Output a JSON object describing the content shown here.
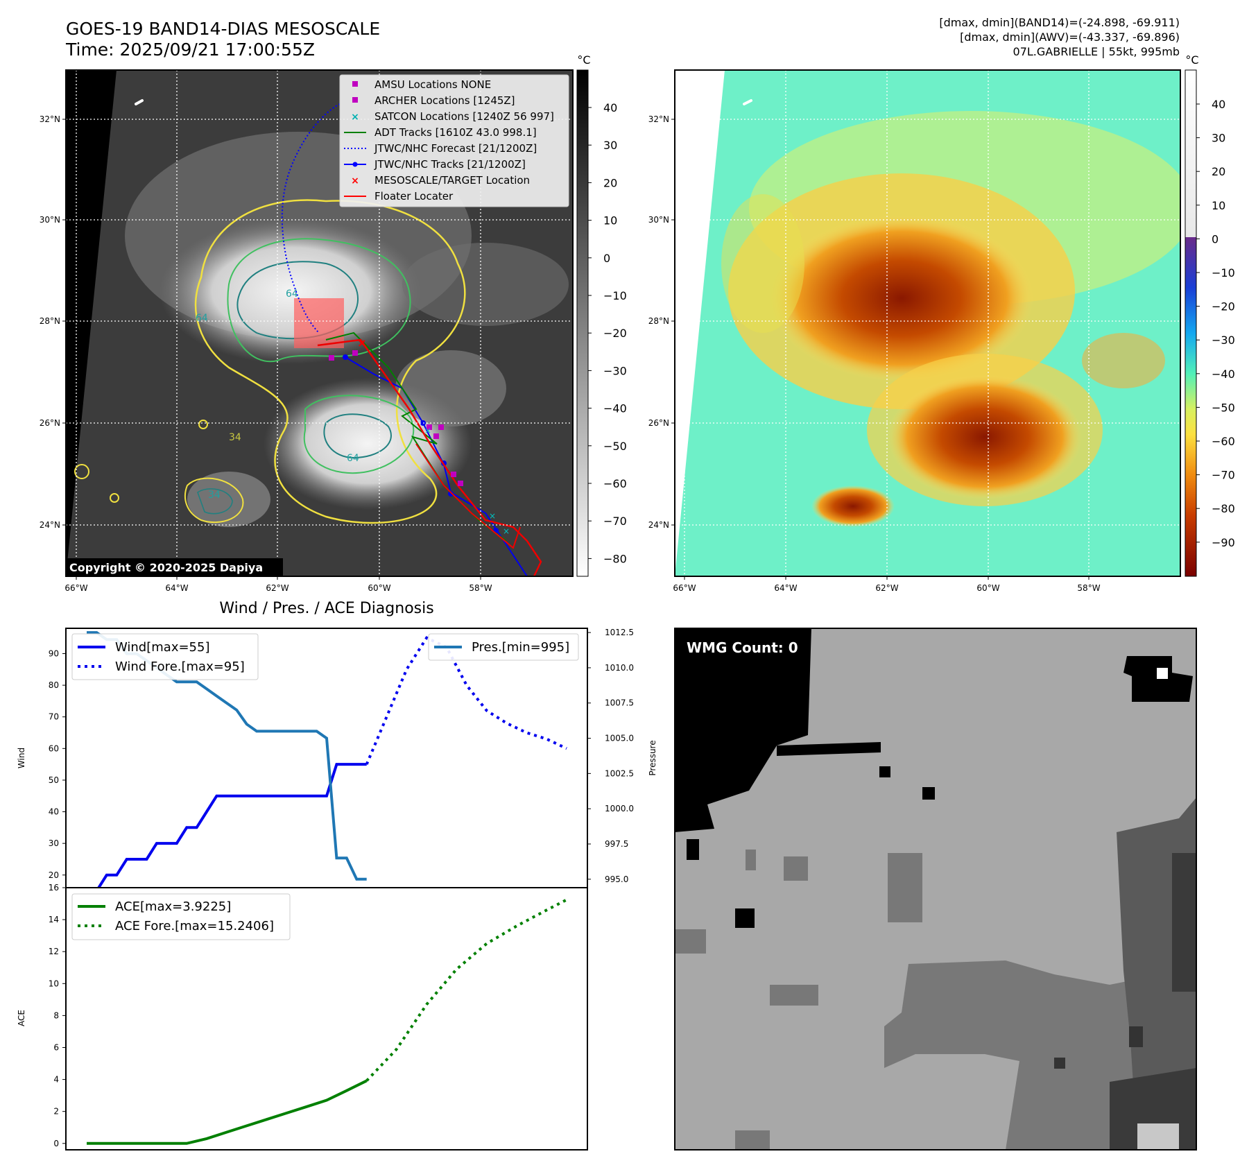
{
  "header": {
    "title_line1": "GOES-19 BAND14-DIAS MESOSCALE",
    "title_line2": "Time: 2025/09/21 17:00:55Z",
    "info_line1": "[dmax, dmin](BAND14)=(-24.898, -69.911)",
    "info_line2": "[dmax, dmin](AWV)=(-43.337, -69.896)",
    "info_line3": "07L.GABRIELLE | 55kt, 995mb"
  },
  "map_common": {
    "lat_labels": [
      "32°N",
      "30°N",
      "28°N",
      "26°N",
      "24°N"
    ],
    "lon_labels": [
      "66°W",
      "64°W",
      "62°W",
      "60°W",
      "58°W"
    ],
    "colorbar_unit": "°C"
  },
  "map_left": {
    "copyright": "Copyright © 2020-2025 Dapiya",
    "colorbar_ticks": [
      "40",
      "30",
      "20",
      "10",
      "0",
      "−10",
      "−20",
      "−30",
      "−40",
      "−50",
      "−60",
      "−70",
      "−80"
    ],
    "contour_labels": [
      "64",
      "34",
      "64",
      "34",
      "64"
    ],
    "legend": [
      {
        "label": "AMSU Locations NONE",
        "color": "#c000c0",
        "marker": "square"
      },
      {
        "label": "ARCHER Locations [1245Z]",
        "color": "#c000c0",
        "marker": "square"
      },
      {
        "label": "SATCON Locations [1240Z 56 997]",
        "color": "#00b0b0",
        "marker": "x"
      },
      {
        "label": "ADT Tracks [1610Z 43.0 998.1]",
        "color": "#008000",
        "marker": "line"
      },
      {
        "label": "JTWC/NHC Forecast [21/1200Z]",
        "color": "#0000ff",
        "marker": "dotted"
      },
      {
        "label": "JTWC/NHC Tracks [21/1200Z]",
        "color": "#0000ff",
        "marker": "line-dot"
      },
      {
        "label": "MESOSCALE/TARGET Location",
        "color": "#ff0000",
        "marker": "x"
      },
      {
        "label": "Floater Locater",
        "color": "#ff0000",
        "marker": "line"
      }
    ]
  },
  "map_right": {
    "colorbar_ticks": [
      "40",
      "30",
      "20",
      "10",
      "0",
      "−10",
      "−20",
      "−30",
      "−40",
      "−50",
      "−60",
      "−70",
      "−80",
      "−90"
    ]
  },
  "wmg": {
    "label": "WMG Count: 0"
  },
  "chart_data": [
    {
      "type": "line",
      "title": "Wind / Pres. / ACE Diagnosis",
      "ylabel": "Wind",
      "y2label": "Pressure",
      "ylim": [
        16,
        98
      ],
      "y2lim": [
        994.4,
        1012.8
      ],
      "y_ticks": [
        "90",
        "80",
        "70",
        "60",
        "50",
        "40",
        "30",
        "20"
      ],
      "y2_ticks": [
        "1012.5",
        "1010.0",
        "1007.5",
        "1005.0",
        "1002.5",
        "1000.0",
        "997.5",
        "995.0"
      ],
      "x_index_range": [
        0,
        48
      ],
      "series": [
        {
          "name": "Wind[max=55]",
          "axis": "left",
          "color": "#0000ee",
          "style": "solid",
          "values": [
            [
              0,
              15
            ],
            [
              1,
              15
            ],
            [
              2,
              20
            ],
            [
              3,
              20
            ],
            [
              4,
              25
            ],
            [
              5,
              25
            ],
            [
              6,
              25
            ],
            [
              7,
              30
            ],
            [
              8,
              30
            ],
            [
              9,
              30
            ],
            [
              10,
              35
            ],
            [
              11,
              35
            ],
            [
              12,
              40
            ],
            [
              13,
              45
            ],
            [
              14,
              45
            ],
            [
              15,
              45
            ],
            [
              16,
              45
            ],
            [
              17,
              45
            ],
            [
              18,
              45
            ],
            [
              19,
              45
            ],
            [
              20,
              45
            ],
            [
              21,
              45
            ],
            [
              22,
              45
            ],
            [
              23,
              45
            ],
            [
              24,
              45
            ],
            [
              25,
              55
            ],
            [
              26,
              55
            ],
            [
              27,
              55
            ],
            [
              28,
              55
            ]
          ]
        },
        {
          "name": "Wind Fore.[max=95]",
          "axis": "left",
          "color": "#0000ee",
          "style": "dotted",
          "values": [
            [
              28,
              55
            ],
            [
              30,
              70
            ],
            [
              32,
              85
            ],
            [
              34,
              95
            ],
            [
              36,
              92
            ],
            [
              38,
              80
            ],
            [
              40,
              72
            ],
            [
              42,
              68
            ],
            [
              44,
              65
            ],
            [
              46,
              63
            ],
            [
              48,
              60
            ]
          ]
        },
        {
          "name": "Pres.[min=995]",
          "axis": "right",
          "color": "#1f77b4",
          "style": "solid",
          "values": [
            [
              0,
              1012.5
            ],
            [
              1,
              1012.5
            ],
            [
              2,
              1012.0
            ],
            [
              3,
              1012.0
            ],
            [
              4,
              1011.0
            ],
            [
              5,
              1011.0
            ],
            [
              6,
              1010.5
            ],
            [
              7,
              1010.0
            ],
            [
              8,
              1009.5
            ],
            [
              9,
              1009.0
            ],
            [
              10,
              1009.0
            ],
            [
              11,
              1009.0
            ],
            [
              12,
              1008.5
            ],
            [
              13,
              1008.0
            ],
            [
              14,
              1007.5
            ],
            [
              15,
              1007.0
            ],
            [
              16,
              1006.0
            ],
            [
              17,
              1005.5
            ],
            [
              18,
              1005.5
            ],
            [
              19,
              1005.5
            ],
            [
              20,
              1005.5
            ],
            [
              21,
              1005.5
            ],
            [
              22,
              1005.5
            ],
            [
              23,
              1005.5
            ],
            [
              24,
              1005.0
            ],
            [
              25,
              996.5
            ],
            [
              26,
              996.5
            ],
            [
              27,
              995.0
            ],
            [
              28,
              995.0
            ]
          ]
        }
      ]
    },
    {
      "type": "line",
      "ylabel": "ACE",
      "ylim": [
        -0.4,
        16
      ],
      "y_ticks": [
        "16",
        "14",
        "12",
        "10",
        "8",
        "6",
        "4",
        "2",
        "0"
      ],
      "x_index_range": [
        0,
        48
      ],
      "series": [
        {
          "name": "ACE[max=3.9225]",
          "color": "#008000",
          "style": "solid",
          "values": [
            [
              0,
              0
            ],
            [
              4,
              0
            ],
            [
              8,
              0
            ],
            [
              10,
              0
            ],
            [
              12,
              0.3
            ],
            [
              14,
              0.7
            ],
            [
              16,
              1.1
            ],
            [
              18,
              1.5
            ],
            [
              20,
              1.9
            ],
            [
              22,
              2.3
            ],
            [
              24,
              2.7
            ],
            [
              26,
              3.3
            ],
            [
              28,
              3.92
            ]
          ]
        },
        {
          "name": "ACE Fore.[max=15.2406]",
          "color": "#008000",
          "style": "dotted",
          "values": [
            [
              28,
              3.92
            ],
            [
              31,
              5.9
            ],
            [
              34,
              8.7
            ],
            [
              37,
              10.9
            ],
            [
              40,
              12.5
            ],
            [
              43,
              13.6
            ],
            [
              46,
              14.6
            ],
            [
              48,
              15.24
            ]
          ]
        }
      ]
    }
  ]
}
